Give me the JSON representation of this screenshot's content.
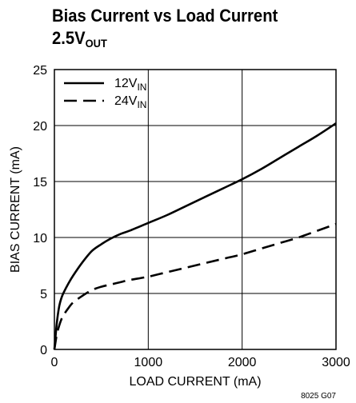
{
  "chart_data": {
    "type": "line",
    "title_line1": "Bias Current vs Load Current",
    "title_line2_main": "2.5V",
    "title_line2_sub": "OUT",
    "xlabel": "LOAD CURRENT (mA)",
    "ylabel": "BIAS CURRENT (mA)",
    "xlim": [
      0,
      3000
    ],
    "ylim": [
      0,
      25
    ],
    "xticks": [
      0,
      1000,
      2000,
      3000
    ],
    "yticks": [
      0,
      5,
      10,
      15,
      20,
      25
    ],
    "grid": true,
    "legend_position": "top-left",
    "figure_code": "8025 G07",
    "series": [
      {
        "name_main": "12V",
        "name_sub": "IN",
        "style": "solid",
        "color": "#000000",
        "x": [
          0,
          25,
          50,
          75,
          100,
          150,
          200,
          300,
          400,
          500,
          600,
          700,
          800,
          1000,
          1200,
          1400,
          1600,
          1800,
          2000,
          2200,
          2400,
          2600,
          2800,
          3000
        ],
        "y": [
          0,
          2.3,
          3.8,
          4.6,
          5.1,
          5.9,
          6.6,
          7.8,
          8.8,
          9.4,
          9.9,
          10.3,
          10.6,
          11.3,
          12.0,
          12.8,
          13.6,
          14.4,
          15.2,
          16.1,
          17.1,
          18.1,
          19.1,
          20.2
        ]
      },
      {
        "name_main": "24V",
        "name_sub": "IN",
        "style": "dashed",
        "color": "#000000",
        "x": [
          0,
          25,
          50,
          75,
          100,
          150,
          200,
          300,
          400,
          500,
          600,
          700,
          800,
          1000,
          1200,
          1400,
          1600,
          1800,
          2000,
          2200,
          2400,
          2600,
          2800,
          3000
        ],
        "y": [
          0,
          1.3,
          2.1,
          2.7,
          3.1,
          3.7,
          4.2,
          4.8,
          5.3,
          5.6,
          5.8,
          6.0,
          6.2,
          6.5,
          6.9,
          7.3,
          7.7,
          8.1,
          8.5,
          9.0,
          9.5,
          10.0,
          10.6,
          11.2
        ]
      }
    ]
  }
}
